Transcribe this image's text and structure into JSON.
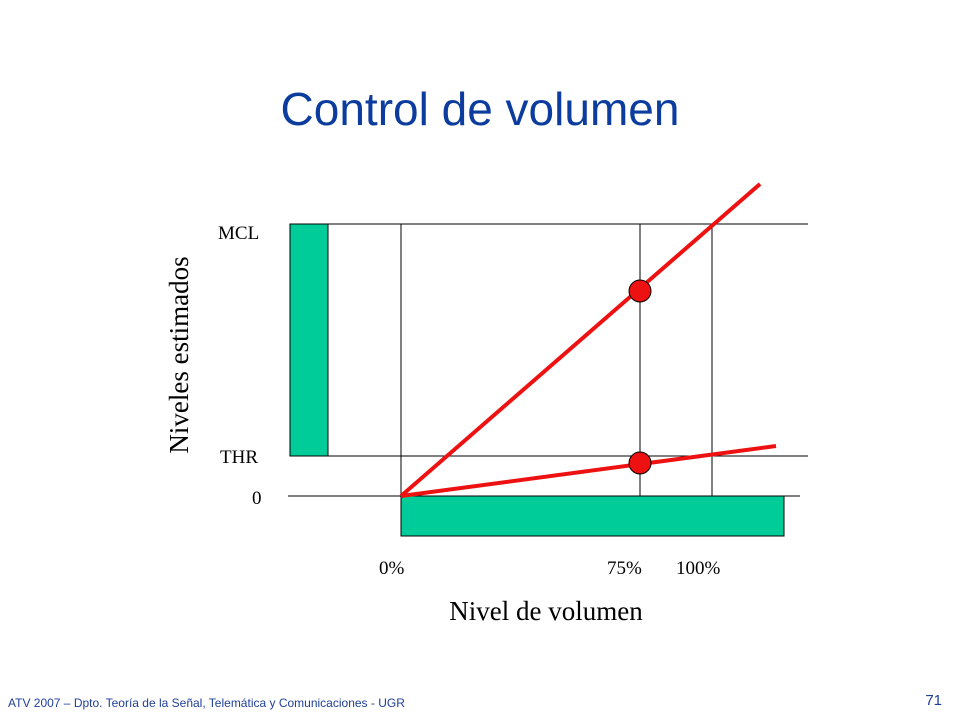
{
  "title": "Control de volumen",
  "diagram": {
    "y_axis_label": "Niveles estimados",
    "x_axis_label": "Nivel de volumen",
    "y_levels": {
      "mcl": "MCL",
      "thr": "THR",
      "zero": "0"
    },
    "x_ticks": {
      "p0": "0%",
      "p75": "75%",
      "p100": "100%"
    },
    "colors": {
      "bar": "#00cc99",
      "line": "#ee1111",
      "marker": "#ee1111",
      "grid": "#000000"
    }
  },
  "footer": {
    "text": "ATV 2007 – Dpto. Teoría de la Señal, Telemática y Comunicaciones - UGR",
    "page": "71"
  }
}
